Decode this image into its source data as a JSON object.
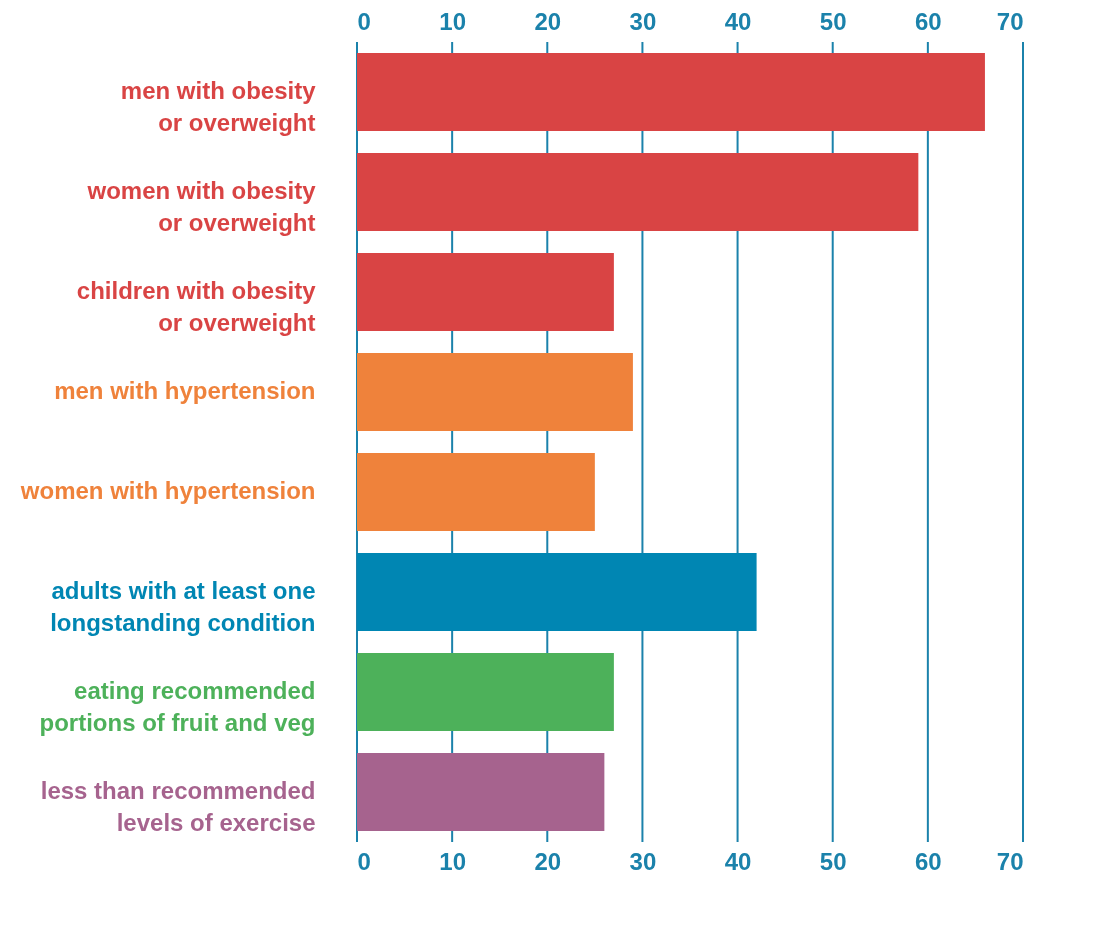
{
  "chart_data": {
    "type": "bar",
    "orientation": "horizontal",
    "categories": [
      "men with obesity\nor overweight",
      "women with obesity\nor overweight",
      "children with obesity\nor overweight",
      "men with hypertension",
      "women with hypertension",
      "adults with at least one\nlongstanding condition",
      "eating recommended\nportions of fruit and veg",
      "less than recommended\nlevels of exercise"
    ],
    "values": [
      66,
      59,
      27,
      29,
      25,
      42,
      27,
      26
    ],
    "colors": [
      "#d94444",
      "#d94444",
      "#d94444",
      "#ef823b",
      "#ef823b",
      "#0086b3",
      "#4db15a",
      "#a6638e"
    ],
    "xlim": [
      0,
      70
    ],
    "xticks": [
      0,
      10,
      20,
      30,
      40,
      50,
      60,
      70
    ],
    "x2lim": [
      0,
      70
    ],
    "x2ticks": [
      0,
      10,
      20,
      30,
      40,
      50,
      60,
      70
    ],
    "grid": "x"
  }
}
